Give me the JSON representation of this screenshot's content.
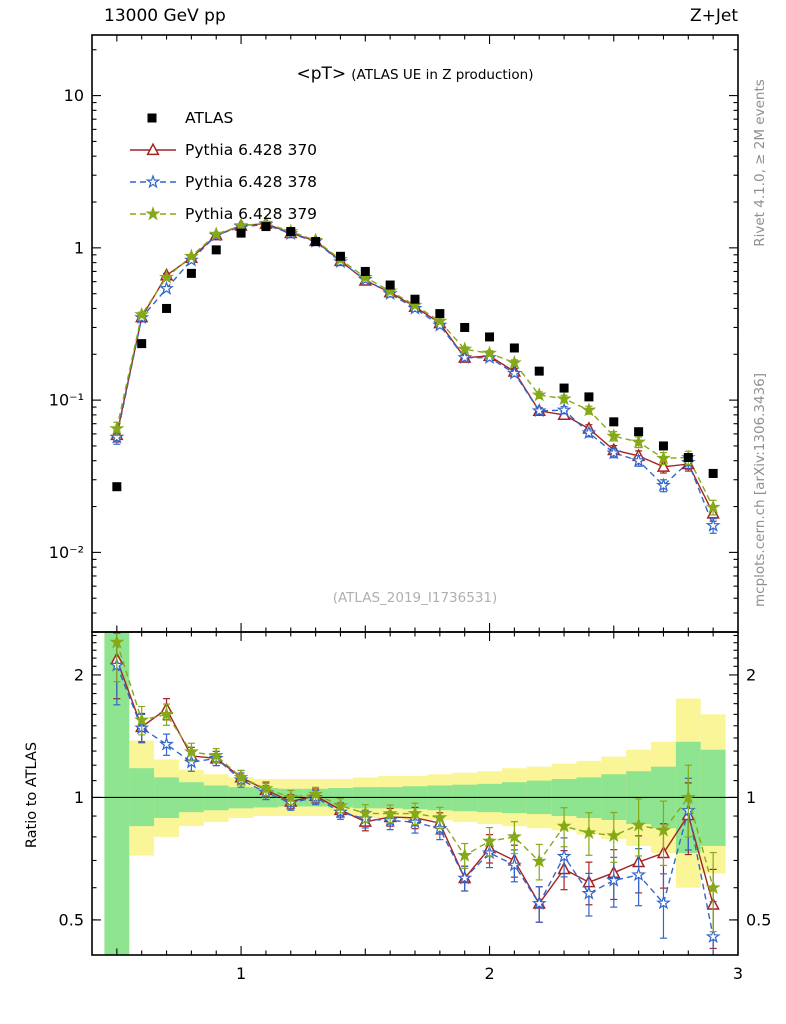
{
  "header": {
    "left": "13000 GeV pp",
    "right": "Z+Jet"
  },
  "side": {
    "top_right": "Rivet 4.1.0, ≥ 2M events",
    "bottom_right": "mcplots.cern.ch [arXiv:1306.3436]"
  },
  "watermark": "(ATLAS_2019_I1736531)",
  "chart_data": {
    "type": "line",
    "title": "<pT>",
    "subtitle": "(ATLAS UE in Z production)",
    "ratio_label": "Ratio to ATLAS",
    "legend_position": "top-left",
    "x": [
      0.5,
      0.6,
      0.7,
      0.8,
      0.9,
      1.0,
      1.1,
      1.2,
      1.3,
      1.4,
      1.5,
      1.6,
      1.7,
      1.8,
      1.9,
      2.0,
      2.1,
      2.2,
      2.3,
      2.4,
      2.5,
      2.6,
      2.7,
      2.8,
      2.9
    ],
    "series": [
      {
        "name": "ATLAS",
        "marker": "square",
        "color": "#000000",
        "line": "none",
        "values": [
          0.027,
          0.235,
          0.4,
          0.68,
          0.97,
          1.25,
          1.38,
          1.28,
          1.1,
          0.88,
          0.7,
          0.57,
          0.46,
          0.37,
          0.3,
          0.26,
          0.22,
          0.155,
          0.12,
          0.105,
          0.072,
          0.062,
          0.05,
          0.042,
          0.033
        ]
      },
      {
        "name": "Pythia 6.428 370",
        "marker": "triangle-open",
        "color": "#a42222",
        "line": "solid",
        "values": [
          0.059,
          0.35,
          0.66,
          0.86,
          1.21,
          1.4,
          1.44,
          1.25,
          1.11,
          0.82,
          0.61,
          0.51,
          0.41,
          0.32,
          0.19,
          0.195,
          0.154,
          0.085,
          0.08,
          0.065,
          0.047,
          0.043,
          0.0365,
          0.038,
          0.018
        ]
      },
      {
        "name": "Pythia 6.428 378",
        "marker": "star-open",
        "color": "#3366cc",
        "line": "dashed",
        "values": [
          0.057,
          0.348,
          0.54,
          0.83,
          1.21,
          1.38,
          1.42,
          1.24,
          1.1,
          0.81,
          0.62,
          0.5,
          0.4,
          0.31,
          0.19,
          0.19,
          0.15,
          0.085,
          0.086,
          0.061,
          0.045,
          0.04,
          0.0275,
          0.039,
          0.015
        ]
      },
      {
        "name": "Pythia 6.428 379",
        "marker": "star",
        "color": "#86a919",
        "line": "dashed",
        "values": [
          0.065,
          0.364,
          0.64,
          0.88,
          1.23,
          1.4,
          1.45,
          1.28,
          1.12,
          0.84,
          0.64,
          0.52,
          0.42,
          0.33,
          0.216,
          0.203,
          0.176,
          0.108,
          0.102,
          0.086,
          0.058,
          0.053,
          0.0415,
          0.042,
          0.0198
        ]
      }
    ],
    "rel_err": [
      0.1,
      0.04,
      0.03,
      0.025,
      0.02,
      0.02,
      0.02,
      0.02,
      0.02,
      0.02,
      0.025,
      0.025,
      0.03,
      0.03,
      0.035,
      0.04,
      0.045,
      0.05,
      0.055,
      0.06,
      0.07,
      0.08,
      0.09,
      0.1,
      0.11
    ],
    "bands": {
      "yellow_color": "#faf698",
      "green_color": "#8fe48f",
      "yellow_lo": [
        0.3,
        0.72,
        0.8,
        0.85,
        0.87,
        0.89,
        0.9,
        0.9,
        0.9,
        0.9,
        0.89,
        0.89,
        0.88,
        0.88,
        0.87,
        0.86,
        0.85,
        0.84,
        0.83,
        0.81,
        0.79,
        0.76,
        0.73,
        0.6,
        0.65
      ],
      "yellow_hi": [
        2.6,
        1.38,
        1.24,
        1.17,
        1.14,
        1.12,
        1.11,
        1.11,
        1.11,
        1.11,
        1.12,
        1.13,
        1.13,
        1.14,
        1.15,
        1.16,
        1.18,
        1.19,
        1.21,
        1.23,
        1.26,
        1.31,
        1.37,
        1.75,
        1.6
      ],
      "green_lo": [
        0.3,
        0.85,
        0.89,
        0.92,
        0.93,
        0.94,
        0.945,
        0.95,
        0.95,
        0.945,
        0.94,
        0.94,
        0.935,
        0.93,
        0.925,
        0.92,
        0.915,
        0.91,
        0.9,
        0.89,
        0.88,
        0.86,
        0.84,
        0.73,
        0.76
      ],
      "green_hi": [
        2.6,
        1.18,
        1.12,
        1.09,
        1.07,
        1.06,
        1.055,
        1.05,
        1.05,
        1.055,
        1.06,
        1.06,
        1.065,
        1.07,
        1.075,
        1.08,
        1.09,
        1.1,
        1.11,
        1.12,
        1.14,
        1.16,
        1.19,
        1.37,
        1.31
      ]
    },
    "axes": {
      "xlim": [
        0.4,
        3.0
      ],
      "x_major": [
        1,
        2,
        3
      ],
      "x_labels": [
        "1",
        "2",
        "3"
      ],
      "main_ylog": [
        0.003,
        25
      ],
      "main_yticks": [
        {
          "v": 10,
          "label": "10"
        },
        {
          "v": 1,
          "label": "1"
        },
        {
          "v": 0.1,
          "label": "10⁻¹"
        },
        {
          "v": 0.01,
          "label": "10⁻²"
        }
      ],
      "ratio_ylog": [
        0.41,
        2.55
      ],
      "ratio_yticks": [
        {
          "v": 2,
          "label": "2"
        },
        {
          "v": 1,
          "label": "1"
        },
        {
          "v": 0.5,
          "label": "0.5"
        }
      ]
    }
  }
}
